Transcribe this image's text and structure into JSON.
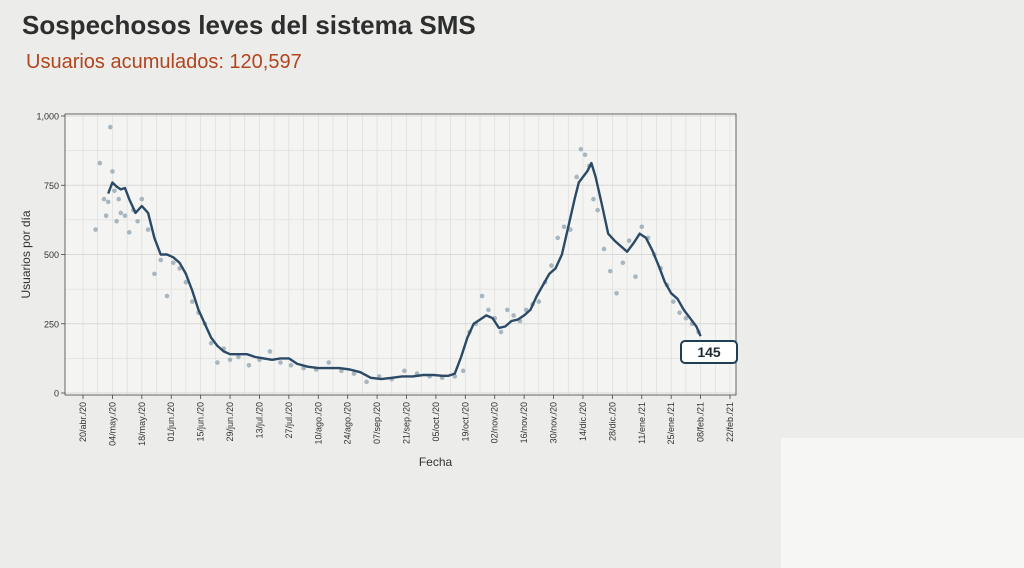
{
  "page": {
    "title": "Sospechosos leves del sistema SMS",
    "subtitle": "Usuarios acumulados: 120,597"
  },
  "colors": {
    "title": "#2c2f2e",
    "subtitle": "#b2441e",
    "line": "#2b4a66",
    "points": "#9aaab6",
    "grid": "#d8d8d8"
  },
  "chart_data": {
    "type": "line",
    "xlabel": "Fecha",
    "ylabel": "Usuarios por día",
    "ylim": [
      0,
      1000
    ],
    "xlim": [
      "2020-04-20",
      "2021-02-22"
    ],
    "yticks": [
      0,
      250,
      500,
      750,
      1000
    ],
    "ytick_labels": [
      "0",
      "250",
      "500",
      "750",
      "1,000"
    ],
    "xticks": [
      "2020-04-20",
      "2020-05-04",
      "2020-05-18",
      "2020-06-01",
      "2020-06-15",
      "2020-06-29",
      "2020-07-13",
      "2020-07-27",
      "2020-08-10",
      "2020-08-24",
      "2020-09-07",
      "2020-09-21",
      "2020-10-05",
      "2020-10-19",
      "2020-11-02",
      "2020-11-16",
      "2020-11-30",
      "2020-12-14",
      "2020-12-28",
      "2021-01-11",
      "2021-01-25",
      "2021-02-08",
      "2021-02-22"
    ],
    "xtick_labels": [
      "20/abr./20",
      "04/may./20",
      "18/may./20",
      "01/jun./20",
      "15/jun./20",
      "29/jun./20",
      "13/jul./20",
      "27/jul./20",
      "10/ago./20",
      "24/ago./20",
      "07/sep./20",
      "21/sep./20",
      "05/oct./20",
      "19/oct./20",
      "02/nov./20",
      "16/nov./20",
      "30/nov./20",
      "14/dic./20",
      "28/dic./20",
      "11/ene./21",
      "25/ene./21",
      "08/feb./21",
      "22/feb./21"
    ],
    "grid": true,
    "annotation": {
      "label": "145",
      "x": "2021-02-08",
      "y": 145
    },
    "series": [
      {
        "style": "line",
        "x": [
          "2020-05-02",
          "2020-05-04",
          "2020-05-06",
          "2020-05-08",
          "2020-05-10",
          "2020-05-12",
          "2020-05-15",
          "2020-05-18",
          "2020-05-21",
          "2020-05-24",
          "2020-05-27",
          "2020-05-30",
          "2020-06-02",
          "2020-06-05",
          "2020-06-08",
          "2020-06-11",
          "2020-06-14",
          "2020-06-17",
          "2020-06-20",
          "2020-06-23",
          "2020-06-26",
          "2020-06-29",
          "2020-07-03",
          "2020-07-07",
          "2020-07-11",
          "2020-07-15",
          "2020-07-19",
          "2020-07-23",
          "2020-07-27",
          "2020-07-31",
          "2020-08-05",
          "2020-08-10",
          "2020-08-15",
          "2020-08-20",
          "2020-08-25",
          "2020-08-30",
          "2020-09-04",
          "2020-09-09",
          "2020-09-14",
          "2020-09-19",
          "2020-09-24",
          "2020-09-29",
          "2020-10-04",
          "2020-10-08",
          "2020-10-11",
          "2020-10-14",
          "2020-10-17",
          "2020-10-20",
          "2020-10-23",
          "2020-10-26",
          "2020-10-29",
          "2020-11-01",
          "2020-11-04",
          "2020-11-07",
          "2020-11-10",
          "2020-11-13",
          "2020-11-16",
          "2020-11-19",
          "2020-11-22",
          "2020-11-25",
          "2020-11-28",
          "2020-12-01",
          "2020-12-04",
          "2020-12-07",
          "2020-12-10",
          "2020-12-12",
          "2020-12-14",
          "2020-12-16",
          "2020-12-18",
          "2020-12-20",
          "2020-12-23",
          "2020-12-26",
          "2020-12-29",
          "2021-01-01",
          "2021-01-04",
          "2021-01-07",
          "2021-01-10",
          "2021-01-13",
          "2021-01-16",
          "2021-01-19",
          "2021-01-22",
          "2021-01-25",
          "2021-01-28",
          "2021-01-31",
          "2021-02-03",
          "2021-02-06",
          "2021-02-08"
        ],
        "y": [
          720,
          760,
          745,
          735,
          740,
          700,
          650,
          675,
          650,
          560,
          500,
          500,
          490,
          470,
          430,
          370,
          300,
          250,
          200,
          170,
          150,
          140,
          140,
          140,
          130,
          125,
          120,
          125,
          125,
          105,
          95,
          90,
          90,
          90,
          85,
          75,
          55,
          50,
          55,
          60,
          60,
          65,
          65,
          62,
          62,
          70,
          130,
          200,
          250,
          265,
          280,
          270,
          235,
          240,
          260,
          265,
          280,
          300,
          350,
          390,
          430,
          450,
          500,
          600,
          700,
          760,
          780,
          800,
          830,
          780,
          680,
          575,
          550,
          530,
          510,
          540,
          575,
          560,
          515,
          460,
          400,
          360,
          340,
          300,
          270,
          240,
          205
        ]
      },
      {
        "style": "scatter",
        "x": [
          "2020-04-26",
          "2020-04-28",
          "2020-04-30",
          "2020-05-01",
          "2020-05-02",
          "2020-05-03",
          "2020-05-04",
          "2020-05-05",
          "2020-05-06",
          "2020-05-07",
          "2020-05-08",
          "2020-05-10",
          "2020-05-12",
          "2020-05-14",
          "2020-05-16",
          "2020-05-18",
          "2020-05-21",
          "2020-05-24",
          "2020-05-27",
          "2020-05-30",
          "2020-06-02",
          "2020-06-05",
          "2020-06-08",
          "2020-06-11",
          "2020-06-14",
          "2020-06-17",
          "2020-06-20",
          "2020-06-23",
          "2020-06-26",
          "2020-06-29",
          "2020-07-03",
          "2020-07-08",
          "2020-07-13",
          "2020-07-18",
          "2020-07-23",
          "2020-07-28",
          "2020-08-03",
          "2020-08-09",
          "2020-08-15",
          "2020-08-21",
          "2020-08-27",
          "2020-09-02",
          "2020-09-08",
          "2020-09-14",
          "2020-09-20",
          "2020-09-26",
          "2020-10-02",
          "2020-10-08",
          "2020-10-14",
          "2020-10-18",
          "2020-10-21",
          "2020-10-24",
          "2020-10-27",
          "2020-10-30",
          "2020-11-02",
          "2020-11-05",
          "2020-11-08",
          "2020-11-11",
          "2020-11-14",
          "2020-11-17",
          "2020-11-20",
          "2020-11-23",
          "2020-11-26",
          "2020-11-29",
          "2020-12-02",
          "2020-12-05",
          "2020-12-08",
          "2020-12-11",
          "2020-12-13",
          "2020-12-15",
          "2020-12-17",
          "2020-12-19",
          "2020-12-21",
          "2020-12-24",
          "2020-12-27",
          "2020-12-30",
          "2021-01-02",
          "2021-01-05",
          "2021-01-08",
          "2021-01-11",
          "2021-01-14",
          "2021-01-17",
          "2021-01-20",
          "2021-01-23",
          "2021-01-26",
          "2021-01-29",
          "2021-02-01",
          "2021-02-04",
          "2021-02-07"
        ],
        "y": [
          590,
          830,
          700,
          640,
          690,
          960,
          800,
          730,
          620,
          700,
          650,
          640,
          580,
          660,
          620,
          700,
          590,
          430,
          480,
          350,
          470,
          450,
          400,
          330,
          290,
          250,
          180,
          110,
          160,
          120,
          130,
          100,
          120,
          150,
          110,
          100,
          90,
          85,
          110,
          80,
          70,
          40,
          60,
          50,
          80,
          70,
          60,
          55,
          60,
          80,
          220,
          250,
          350,
          300,
          270,
          220,
          300,
          280,
          260,
          300,
          320,
          330,
          400,
          460,
          560,
          600,
          590,
          780,
          880,
          860,
          820,
          700,
          660,
          520,
          440,
          360,
          470,
          550,
          420,
          600,
          560,
          500,
          450,
          390,
          330,
          290,
          270,
          250,
          220
        ]
      }
    ]
  }
}
